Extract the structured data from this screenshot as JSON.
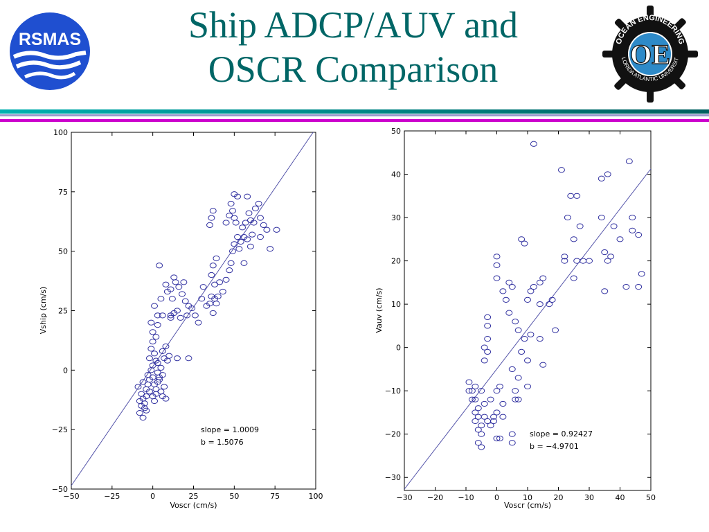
{
  "slide": {
    "title_line1": "Ship ADCP/AUV and",
    "title_line2": "OSCR Comparison",
    "left_logo_text": "RSMAS",
    "right_logo_text": "OCEAN ENGINEERING",
    "right_logo_subtext": "FLORIDA ATLANTIC UNIVERSITY",
    "right_logo_monogram": "OE",
    "colors": {
      "title": "#006666",
      "rule_teal": "#008080",
      "rule_magenta": "#cc00cc",
      "rsmas_blue": "#1f4fd0",
      "marker": "#3030a0",
      "fit_line": "#5555aa"
    }
  },
  "chart_data": [
    {
      "type": "scatter",
      "title": "",
      "xlabel": "Voscr (cm/s)",
      "ylabel": "Vship (cm/s)",
      "xlim": [
        -50,
        100
      ],
      "ylim": [
        -50,
        100
      ],
      "xticks": [
        -50,
        -25,
        0,
        25,
        50,
        75,
        100
      ],
      "yticks": [
        -50,
        -25,
        0,
        25,
        50,
        75,
        100
      ],
      "xtick_labels": [
        "−50",
        "−25",
        "0",
        "25",
        "50",
        "75",
        "100"
      ],
      "ytick_labels": [
        "−50",
        "−25",
        "0",
        "25",
        "50",
        "75",
        "100"
      ],
      "grid": false,
      "fit_line": {
        "slope": 1.0009,
        "intercept": 1.5076
      },
      "annotations": [
        "slope = 1.0009",
        "b = 1.5076"
      ],
      "points": [
        [
          -8,
          -18
        ],
        [
          -7,
          -15
        ],
        [
          -6,
          -12
        ],
        [
          -6,
          -20
        ],
        [
          -5,
          -14
        ],
        [
          -5,
          -16
        ],
        [
          -4,
          -11
        ],
        [
          -8,
          -13
        ],
        [
          -9,
          -7
        ],
        [
          -7,
          -10
        ],
        [
          -6,
          -5
        ],
        [
          -4,
          -17
        ],
        [
          -3,
          -2
        ],
        [
          -2,
          -4
        ],
        [
          -1,
          0
        ],
        [
          0,
          -3
        ],
        [
          0,
          2
        ],
        [
          1,
          -6
        ],
        [
          2,
          -8
        ],
        [
          3,
          -1
        ],
        [
          -2,
          5
        ],
        [
          -1,
          9
        ],
        [
          0,
          12
        ],
        [
          1,
          7
        ],
        [
          2,
          4
        ],
        [
          3,
          3
        ],
        [
          4,
          -4
        ],
        [
          5,
          1
        ],
        [
          6,
          -2
        ],
        [
          7,
          -7
        ],
        [
          8,
          -12
        ],
        [
          7,
          5
        ],
        [
          6,
          8
        ],
        [
          8,
          10
        ],
        [
          9,
          4
        ],
        [
          10,
          6
        ],
        [
          0,
          16
        ],
        [
          -1,
          20
        ],
        [
          2,
          14
        ],
        [
          3,
          19
        ],
        [
          1,
          27
        ],
        [
          3,
          23
        ],
        [
          5,
          30
        ],
        [
          6,
          23
        ],
        [
          8,
          36
        ],
        [
          9,
          33
        ],
        [
          11,
          34
        ],
        [
          12,
          30
        ],
        [
          13,
          39
        ],
        [
          14,
          37
        ],
        [
          16,
          35
        ],
        [
          18,
          32
        ],
        [
          19,
          37
        ],
        [
          20,
          29
        ],
        [
          22,
          27
        ],
        [
          21,
          23
        ],
        [
          17,
          22
        ],
        [
          15,
          25
        ],
        [
          13,
          24
        ],
        [
          11,
          22
        ],
        [
          4,
          44
        ],
        [
          11,
          23
        ],
        [
          15,
          5
        ],
        [
          22,
          5
        ],
        [
          24,
          26
        ],
        [
          26,
          23
        ],
        [
          28,
          20
        ],
        [
          30,
          30
        ],
        [
          31,
          35
        ],
        [
          33,
          27
        ],
        [
          35,
          28
        ],
        [
          36,
          31
        ],
        [
          37,
          24
        ],
        [
          38,
          30
        ],
        [
          39,
          28
        ],
        [
          40,
          31
        ],
        [
          38,
          36
        ],
        [
          36,
          40
        ],
        [
          37,
          44
        ],
        [
          39,
          47
        ],
        [
          41,
          37
        ],
        [
          43,
          33
        ],
        [
          45,
          38
        ],
        [
          47,
          42
        ],
        [
          48,
          45
        ],
        [
          49,
          50
        ],
        [
          50,
          53
        ],
        [
          52,
          56
        ],
        [
          55,
          60
        ],
        [
          53,
          51
        ],
        [
          56,
          45
        ],
        [
          58,
          55
        ],
        [
          57,
          62
        ],
        [
          59,
          66
        ],
        [
          60,
          63
        ],
        [
          62,
          62
        ],
        [
          63,
          68
        ],
        [
          65,
          70
        ],
        [
          66,
          64
        ],
        [
          68,
          61
        ],
        [
          70,
          59
        ],
        [
          72,
          51
        ],
        [
          76,
          59
        ],
        [
          48,
          70
        ],
        [
          50,
          74
        ],
        [
          52,
          73
        ],
        [
          58,
          73
        ],
        [
          45,
          62
        ],
        [
          47,
          65
        ],
        [
          49,
          67
        ],
        [
          35,
          61
        ],
        [
          36,
          64
        ],
        [
          37,
          67
        ],
        [
          50,
          64
        ],
        [
          51,
          62
        ],
        [
          54,
          54
        ],
        [
          56,
          56
        ],
        [
          60,
          52
        ],
        [
          61,
          57
        ],
        [
          66,
          56
        ],
        [
          -3,
          -6
        ],
        [
          -4,
          -8
        ],
        [
          -2,
          -9
        ],
        [
          0,
          -11
        ],
        [
          1,
          -13
        ],
        [
          2,
          -10
        ],
        [
          3,
          -5
        ],
        [
          4,
          -3
        ],
        [
          5,
          -9
        ],
        [
          6,
          -11
        ]
      ]
    },
    {
      "type": "scatter",
      "title": "",
      "xlabel": "Voscr (cm/s)",
      "ylabel": "Vauv (cm/s)",
      "xlim": [
        -30,
        50
      ],
      "ylim": [
        -33,
        50
      ],
      "xticks": [
        -30,
        -20,
        -10,
        0,
        10,
        20,
        30,
        40,
        50
      ],
      "yticks": [
        -30,
        -20,
        -10,
        0,
        10,
        20,
        30,
        40,
        50
      ],
      "xtick_labels": [
        "−30",
        "−20",
        "−10",
        "0",
        "10",
        "20",
        "30",
        "40",
        "50"
      ],
      "ytick_labels": [
        "−30",
        "−20",
        "−10",
        "0",
        "10",
        "20",
        "30",
        "40",
        "50"
      ],
      "grid": false,
      "fit_line": {
        "slope": 0.92427,
        "intercept": -4.9701
      },
      "annotations": [
        "slope = 0.92427",
        "b = −4.9701"
      ],
      "points": [
        [
          -9,
          -8
        ],
        [
          -9,
          -10
        ],
        [
          -8,
          -12
        ],
        [
          -7,
          -9
        ],
        [
          -7,
          -15
        ],
        [
          -7,
          -17
        ],
        [
          -6,
          -16
        ],
        [
          -6,
          -19
        ],
        [
          -6,
          -22
        ],
        [
          -5,
          -20
        ],
        [
          -5,
          -23
        ],
        [
          -5,
          -18
        ],
        [
          -4,
          -16
        ],
        [
          -4,
          -13
        ],
        [
          -4,
          -3
        ],
        [
          -4,
          0
        ],
        [
          -3,
          -1
        ],
        [
          -3,
          2
        ],
        [
          -3,
          5
        ],
        [
          -3,
          7
        ],
        [
          -3,
          -17
        ],
        [
          -2,
          -18
        ],
        [
          -1,
          -16
        ],
        [
          0,
          -15
        ],
        [
          0,
          -10
        ],
        [
          0,
          -21
        ],
        [
          1,
          -21
        ],
        [
          1,
          -9
        ],
        [
          2,
          -13
        ],
        [
          2,
          -16
        ],
        [
          0,
          16
        ],
        [
          0,
          19
        ],
        [
          0,
          21
        ],
        [
          2,
          13
        ],
        [
          3,
          11
        ],
        [
          4,
          8
        ],
        [
          4,
          15
        ],
        [
          5,
          14
        ],
        [
          6,
          6
        ],
        [
          7,
          4
        ],
        [
          5,
          -5
        ],
        [
          6,
          -10
        ],
        [
          6,
          -12
        ],
        [
          7,
          -7
        ],
        [
          8,
          -1
        ],
        [
          9,
          2
        ],
        [
          10,
          -3
        ],
        [
          10,
          -9
        ],
        [
          11,
          3
        ],
        [
          8,
          25
        ],
        [
          9,
          24
        ],
        [
          10,
          11
        ],
        [
          11,
          13
        ],
        [
          12,
          14
        ],
        [
          14,
          10
        ],
        [
          14,
          15
        ],
        [
          15,
          16
        ],
        [
          14,
          2
        ],
        [
          15,
          -4
        ],
        [
          17,
          10
        ],
        [
          18,
          11
        ],
        [
          19,
          4
        ],
        [
          22,
          20
        ],
        [
          22,
          21
        ],
        [
          23,
          30
        ],
        [
          24,
          35
        ],
        [
          25,
          25
        ],
        [
          25,
          16
        ],
        [
          26,
          35
        ],
        [
          26,
          20
        ],
        [
          27,
          28
        ],
        [
          28,
          20
        ],
        [
          30,
          20
        ],
        [
          34,
          30
        ],
        [
          35,
          13
        ],
        [
          35,
          22
        ],
        [
          36,
          20
        ],
        [
          37,
          21
        ],
        [
          38,
          28
        ],
        [
          40,
          25
        ],
        [
          42,
          14
        ],
        [
          43,
          43
        ],
        [
          44,
          30
        ],
        [
          44,
          27
        ],
        [
          46,
          26
        ],
        [
          46,
          14
        ],
        [
          47,
          17
        ],
        [
          34,
          39
        ],
        [
          36,
          40
        ],
        [
          21,
          41
        ],
        [
          12,
          47
        ],
        [
          7,
          -12
        ],
        [
          5,
          -20
        ],
        [
          5,
          -22
        ],
        [
          -2,
          -12
        ],
        [
          -1,
          -17
        ],
        [
          -8,
          -10
        ],
        [
          -7,
          -12
        ],
        [
          -6,
          -14
        ],
        [
          -5,
          -10
        ]
      ]
    }
  ]
}
